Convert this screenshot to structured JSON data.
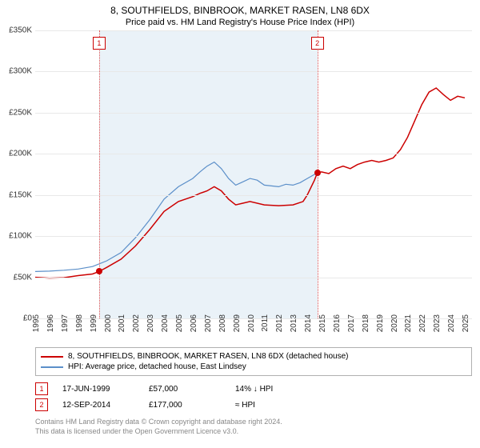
{
  "title": "8, SOUTHFIELDS, BINBROOK, MARKET RASEN, LN8 6DX",
  "subtitle": "Price paid vs. HM Land Registry's House Price Index (HPI)",
  "chart": {
    "type": "line",
    "background_color": "#ffffff",
    "grid_color": "#e8e8e8",
    "shaded_region_color": "#eaf2f8",
    "ylim": [
      0,
      350000
    ],
    "ytick_step": 50000,
    "yticks": [
      "£0",
      "£50K",
      "£100K",
      "£150K",
      "£200K",
      "£250K",
      "£300K",
      "£350K"
    ],
    "xlim": [
      1995,
      2025.5
    ],
    "xticks": [
      1995,
      1996,
      1997,
      1998,
      1999,
      2000,
      2001,
      2002,
      2003,
      2004,
      2005,
      2006,
      2007,
      2008,
      2009,
      2010,
      2011,
      2012,
      2013,
      2014,
      2015,
      2016,
      2017,
      2018,
      2019,
      2020,
      2021,
      2022,
      2023,
      2024,
      2025
    ],
    "axis_fontsize": 10,
    "series": [
      {
        "name": "red",
        "label": "8, SOUTHFIELDS, BINBROOK, MARKET RASEN, LN8 6DX (detached house)",
        "color": "#cc0000",
        "line_width": 1.5,
        "data": [
          [
            1995,
            50000
          ],
          [
            1996,
            49000
          ],
          [
            1997,
            49500
          ],
          [
            1998,
            52000
          ],
          [
            1999,
            54000
          ],
          [
            1999.46,
            57000
          ],
          [
            2000,
            62000
          ],
          [
            2001,
            72000
          ],
          [
            2002,
            88000
          ],
          [
            2003,
            108000
          ],
          [
            2004,
            130000
          ],
          [
            2005,
            142000
          ],
          [
            2006,
            148000
          ],
          [
            2006.5,
            152000
          ],
          [
            2007,
            155000
          ],
          [
            2007.5,
            160000
          ],
          [
            2008,
            155000
          ],
          [
            2008.5,
            145000
          ],
          [
            2009,
            138000
          ],
          [
            2009.5,
            140000
          ],
          [
            2010,
            142000
          ],
          [
            2011,
            138000
          ],
          [
            2012,
            137000
          ],
          [
            2013,
            138000
          ],
          [
            2013.7,
            142000
          ],
          [
            2014,
            150000
          ],
          [
            2014.5,
            168000
          ],
          [
            2014.7,
            177000
          ],
          [
            2015,
            178000
          ],
          [
            2015.5,
            176000
          ],
          [
            2016,
            182000
          ],
          [
            2016.5,
            185000
          ],
          [
            2017,
            182000
          ],
          [
            2017.5,
            187000
          ],
          [
            2018,
            190000
          ],
          [
            2018.5,
            192000
          ],
          [
            2019,
            190000
          ],
          [
            2019.5,
            192000
          ],
          [
            2020,
            195000
          ],
          [
            2020.5,
            205000
          ],
          [
            2021,
            220000
          ],
          [
            2021.5,
            240000
          ],
          [
            2022,
            260000
          ],
          [
            2022.5,
            275000
          ],
          [
            2023,
            280000
          ],
          [
            2023.5,
            272000
          ],
          [
            2024,
            265000
          ],
          [
            2024.5,
            270000
          ],
          [
            2025,
            268000
          ]
        ]
      },
      {
        "name": "blue",
        "label": "HPI: Average price, detached house, East Lindsey",
        "color": "#5b8fc9",
        "line_width": 1.2,
        "data": [
          [
            1995,
            57000
          ],
          [
            1996,
            57500
          ],
          [
            1997,
            58500
          ],
          [
            1998,
            60000
          ],
          [
            1999,
            63000
          ],
          [
            2000,
            70000
          ],
          [
            2001,
            80000
          ],
          [
            2002,
            98000
          ],
          [
            2003,
            120000
          ],
          [
            2004,
            145000
          ],
          [
            2005,
            160000
          ],
          [
            2006,
            170000
          ],
          [
            2006.5,
            178000
          ],
          [
            2007,
            185000
          ],
          [
            2007.5,
            190000
          ],
          [
            2008,
            182000
          ],
          [
            2008.5,
            170000
          ],
          [
            2009,
            162000
          ],
          [
            2009.5,
            166000
          ],
          [
            2010,
            170000
          ],
          [
            2010.5,
            168000
          ],
          [
            2011,
            162000
          ],
          [
            2012,
            160000
          ],
          [
            2012.5,
            163000
          ],
          [
            2013,
            162000
          ],
          [
            2013.5,
            165000
          ],
          [
            2014,
            170000
          ],
          [
            2014.5,
            175000
          ],
          [
            2014.7,
            178000
          ]
        ]
      }
    ],
    "markers": [
      {
        "n": "1",
        "x": 1999.46,
        "y": 57000
      },
      {
        "n": "2",
        "x": 2014.7,
        "y": 177000
      }
    ]
  },
  "legend": [
    {
      "color": "#cc0000",
      "label": "8, SOUTHFIELDS, BINBROOK, MARKET RASEN, LN8 6DX (detached house)"
    },
    {
      "color": "#5b8fc9",
      "label": "HPI: Average price, detached house, East Lindsey"
    }
  ],
  "sales": [
    {
      "n": "1",
      "date": "17-JUN-1999",
      "price": "£57,000",
      "delta": "14% ↓ HPI"
    },
    {
      "n": "2",
      "date": "12-SEP-2014",
      "price": "£177,000",
      "delta": "≈ HPI"
    }
  ],
  "footer_line1": "Contains HM Land Registry data © Crown copyright and database right 2024.",
  "footer_line2": "This data is licensed under the Open Government Licence v3.0."
}
